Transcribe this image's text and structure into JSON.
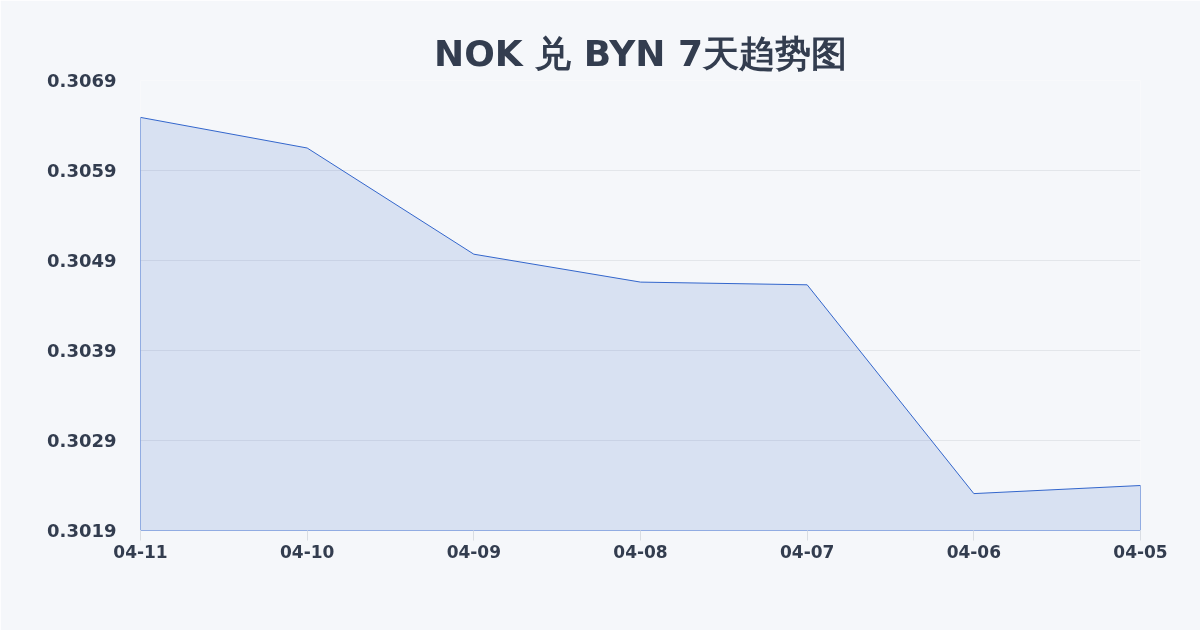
{
  "chart_data": {
    "type": "area",
    "title": "NOK 兑 BYN 7天趋势图",
    "categories": [
      "04-11",
      "04-10",
      "04-09",
      "04-08",
      "04-07",
      "04-06",
      "04-05"
    ],
    "series": [
      {
        "color": "#3366cc",
        "values": [
          0.30649,
          0.30615,
          0.30497,
          0.30466,
          0.30463,
          0.30231,
          0.3024
        ]
      }
    ],
    "ylim": [
      0.3019,
      0.3069
    ],
    "yticks": [
      0.3019,
      0.3029,
      0.3039,
      0.3049,
      0.3059,
      0.3069
    ],
    "grid": "y"
  }
}
